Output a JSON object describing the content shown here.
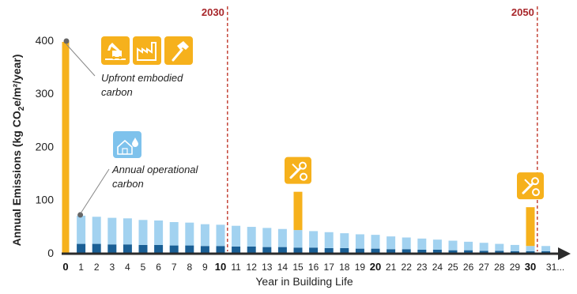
{
  "chart_data": {
    "type": "bar",
    "ylabel": "Annual Emissions (kg CO",
    "ylabel_sub": "2",
    "ylabel_rest": "e/m²/year)",
    "xlabel": "Year in Building Life",
    "ylim": [
      0,
      420
    ],
    "yticks": [
      0,
      100,
      200,
      300,
      400
    ],
    "x": [
      0,
      1,
      2,
      3,
      4,
      5,
      6,
      7,
      8,
      9,
      10,
      11,
      12,
      13,
      14,
      15,
      16,
      17,
      18,
      19,
      20,
      21,
      22,
      23,
      24,
      25,
      26,
      27,
      28,
      29,
      30,
      31
    ],
    "x_labels": [
      "0",
      "1",
      "2",
      "3",
      "4",
      "5",
      "6",
      "7",
      "8",
      "9",
      "10",
      "11",
      "12",
      "13",
      "14",
      "15",
      "16",
      "17",
      "18",
      "19",
      "20",
      "21",
      "22",
      "23",
      "24",
      "25",
      "26",
      "27",
      "28",
      "29",
      "30",
      "31..."
    ],
    "bold_x": [
      0,
      10,
      20,
      30
    ],
    "series": [
      {
        "key": "dark",
        "color": "#1a5f95",
        "values": [
          0,
          17,
          17,
          16,
          16,
          15,
          15,
          14,
          14,
          13,
          13,
          12,
          12,
          11,
          11,
          10,
          10,
          9,
          9,
          8,
          8,
          7,
          7,
          6,
          6,
          5,
          5,
          4,
          4,
          3,
          3,
          3
        ]
      },
      {
        "key": "light",
        "color": "#a2d2f0",
        "values": [
          0,
          53,
          51,
          50,
          49,
          47,
          46,
          44,
          43,
          41,
          40,
          39,
          37,
          36,
          34,
          33,
          31,
          30,
          28,
          27,
          26,
          24,
          22,
          21,
          19,
          18,
          16,
          15,
          13,
          12,
          10,
          10
        ]
      },
      {
        "key": "upfront",
        "color": "#f6b11c",
        "values": [
          397,
          0,
          0,
          0,
          0,
          0,
          0,
          0,
          0,
          0,
          0,
          0,
          0,
          0,
          0,
          72,
          0,
          0,
          0,
          0,
          0,
          0,
          0,
          0,
          0,
          0,
          0,
          0,
          0,
          0,
          73,
          0
        ]
      }
    ],
    "vlines": [
      {
        "x": 10,
        "label": "2030",
        "color": "#c0392b"
      },
      {
        "x": 30,
        "label": "2050",
        "color": "#c0392b"
      }
    ],
    "annotations": [
      {
        "line1": "Upfront embodied",
        "line2": "carbon",
        "point_x": 0,
        "point_y": 397
      },
      {
        "line1": "Annual operational",
        "line2": "carbon",
        "point_x": 1,
        "point_y": 70
      }
    ],
    "icons": [
      {
        "name": "construction-excavator-icon",
        "color": "#f6b11c"
      },
      {
        "name": "factory-icon",
        "color": "#f6b11c"
      },
      {
        "name": "hammer-icon",
        "color": "#f6b11c"
      },
      {
        "name": "home-energy-water-icon",
        "color": "#7ec2ec"
      },
      {
        "name": "repair-tools-icon-year-15",
        "color": "#f6b11c"
      },
      {
        "name": "repair-tools-icon-year-30",
        "color": "#f6b11c"
      }
    ]
  }
}
